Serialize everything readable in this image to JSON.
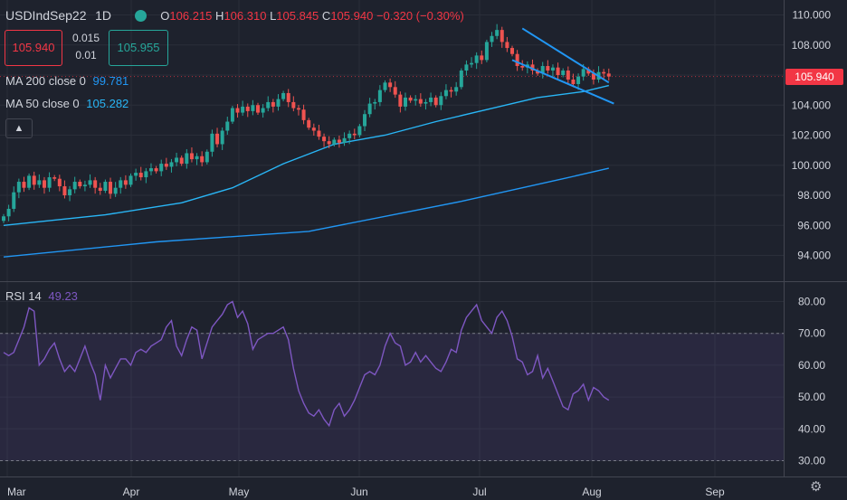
{
  "header": {
    "symbol": "USDIndSep22",
    "interval": "1D",
    "ohlc": {
      "o": "106.215",
      "h": "106.310",
      "l": "105.845",
      "c": "105.940",
      "change": "−0.320 (−0.30%)"
    },
    "bid": "105.940",
    "spread_top": "0.015",
    "spread_bottom": "0.01",
    "ask": "105.955"
  },
  "indicators": {
    "ma200_label": "MA 200 close 0",
    "ma200_value": "99.781",
    "ma50_label": "MA 50 close 0",
    "ma50_value": "105.282",
    "rsi_label": "RSI 14",
    "rsi_value": "49.23"
  },
  "price_tag": "105.940",
  "colors": {
    "up": "#26a69a",
    "down": "#ef5350",
    "ma": "#2196f3",
    "ma50": "#29b6f6",
    "rsi": "#7e57c2",
    "trend": "#2196f3",
    "bg": "#1e222d"
  },
  "chart_data": [
    {
      "type": "candlestick",
      "title": "USDIndSep22 1D",
      "ylim": [
        92.5,
        110.6
      ],
      "yticks": [
        "94.000",
        "96.000",
        "98.000",
        "100.000",
        "102.000",
        "104.000",
        "106.000",
        "108.000",
        "110.000"
      ],
      "xticks": [
        "Mar",
        "Apr",
        "May",
        "Jun",
        "Jul",
        "Aug",
        "Sep"
      ],
      "closes": [
        96.6,
        97.1,
        98.2,
        98.9,
        98.5,
        99.3,
        98.7,
        99.0,
        98.5,
        99.2,
        99.1,
        98.6,
        98.0,
        98.4,
        98.9,
        98.6,
        98.7,
        99.0,
        98.5,
        98.3,
        98.9,
        98.1,
        98.5,
        99.0,
        98.7,
        99.3,
        99.5,
        99.2,
        99.6,
        99.8,
        99.6,
        100.1,
        99.9,
        100.2,
        100.5,
        100.1,
        100.8,
        100.4,
        100.6,
        100.2,
        100.9,
        102.1,
        101.4,
        102.3,
        102.9,
        103.8,
        103.5,
        103.9,
        103.6,
        104.0,
        103.5,
        103.8,
        104.2,
        103.9,
        104.4,
        104.8,
        104.2,
        103.8,
        103.7,
        103.0,
        102.5,
        102.3,
        101.9,
        101.6,
        101.4,
        101.7,
        101.5,
        101.8,
        102.1,
        102.0,
        102.6,
        103.4,
        104.1,
        104.2,
        105.0,
        105.5,
        105.2,
        104.7,
        103.9,
        104.5,
        104.3,
        104.4,
        104.1,
        104.2,
        104.5,
        104.0,
        104.6,
        105.0,
        104.9,
        105.2,
        106.3,
        106.7,
        106.8,
        107.3,
        107.0,
        108.2,
        108.6,
        109.0,
        108.2,
        107.8,
        107.4,
        106.6,
        106.5,
        106.7,
        106.3,
        106.1,
        106.6,
        106.3,
        106.5,
        106.0,
        106.3,
        105.7,
        105.4,
        105.9,
        106.4,
        106.1,
        105.7,
        106.2,
        106.1,
        105.9
      ],
      "series": [
        {
          "name": "MA 200 close 0",
          "values": [
            [
              0,
              93.9
            ],
            [
              30,
              94.9
            ],
            [
              60,
              95.6
            ],
            [
              90,
              97.6
            ],
            [
              110,
              99.1
            ],
            [
              119,
              99.8
            ]
          ]
        },
        {
          "name": "MA 50 close 0",
          "values": [
            [
              0,
              96.0
            ],
            [
              20,
              96.7
            ],
            [
              35,
              97.5
            ],
            [
              45,
              98.5
            ],
            [
              55,
              100.1
            ],
            [
              65,
              101.4
            ],
            [
              75,
              102.0
            ],
            [
              85,
              102.9
            ],
            [
              95,
              103.7
            ],
            [
              105,
              104.5
            ],
            [
              114,
              104.9
            ],
            [
              119,
              105.3
            ]
          ]
        }
      ],
      "annotations": [
        {
          "type": "trendline",
          "points": [
            [
              102,
              109.1
            ],
            [
              119,
              105.5
            ]
          ]
        },
        {
          "type": "trendline",
          "points": [
            [
              100,
              107.0
            ],
            [
              120,
              104.1
            ]
          ]
        }
      ]
    },
    {
      "type": "line",
      "title": "RSI 14",
      "ylim": [
        27,
        83
      ],
      "yticks": [
        "30.00",
        "40.00",
        "50.00",
        "60.00",
        "70.00",
        "80.00"
      ],
      "bands": [
        30,
        70
      ],
      "series": [
        {
          "name": "RSI 14",
          "values": [
            64,
            63,
            64,
            68,
            72,
            78,
            77,
            60,
            62,
            65,
            67,
            62,
            58,
            60,
            58,
            62,
            66,
            61,
            57,
            49,
            60,
            56,
            59,
            62,
            62,
            60,
            64,
            65,
            64,
            66,
            67,
            68,
            72,
            74,
            66,
            63,
            68,
            72,
            71,
            62,
            67,
            72,
            74,
            76,
            79,
            80,
            75,
            77,
            73,
            65,
            68,
            69,
            70,
            70,
            71,
            72,
            68,
            59,
            52,
            48,
            45,
            44,
            46,
            43,
            41,
            46,
            48,
            44,
            46,
            49,
            53,
            57,
            58,
            57,
            60,
            66,
            70,
            67,
            66,
            60,
            61,
            64,
            61,
            63,
            61,
            59,
            58,
            61,
            65,
            64,
            71,
            75,
            77,
            79,
            74,
            72,
            70,
            75,
            77,
            74,
            69,
            62,
            61,
            57,
            58,
            63,
            56,
            59,
            55,
            51,
            47,
            46,
            51,
            52,
            54,
            49,
            53,
            52,
            50,
            49
          ]
        }
      ]
    }
  ]
}
